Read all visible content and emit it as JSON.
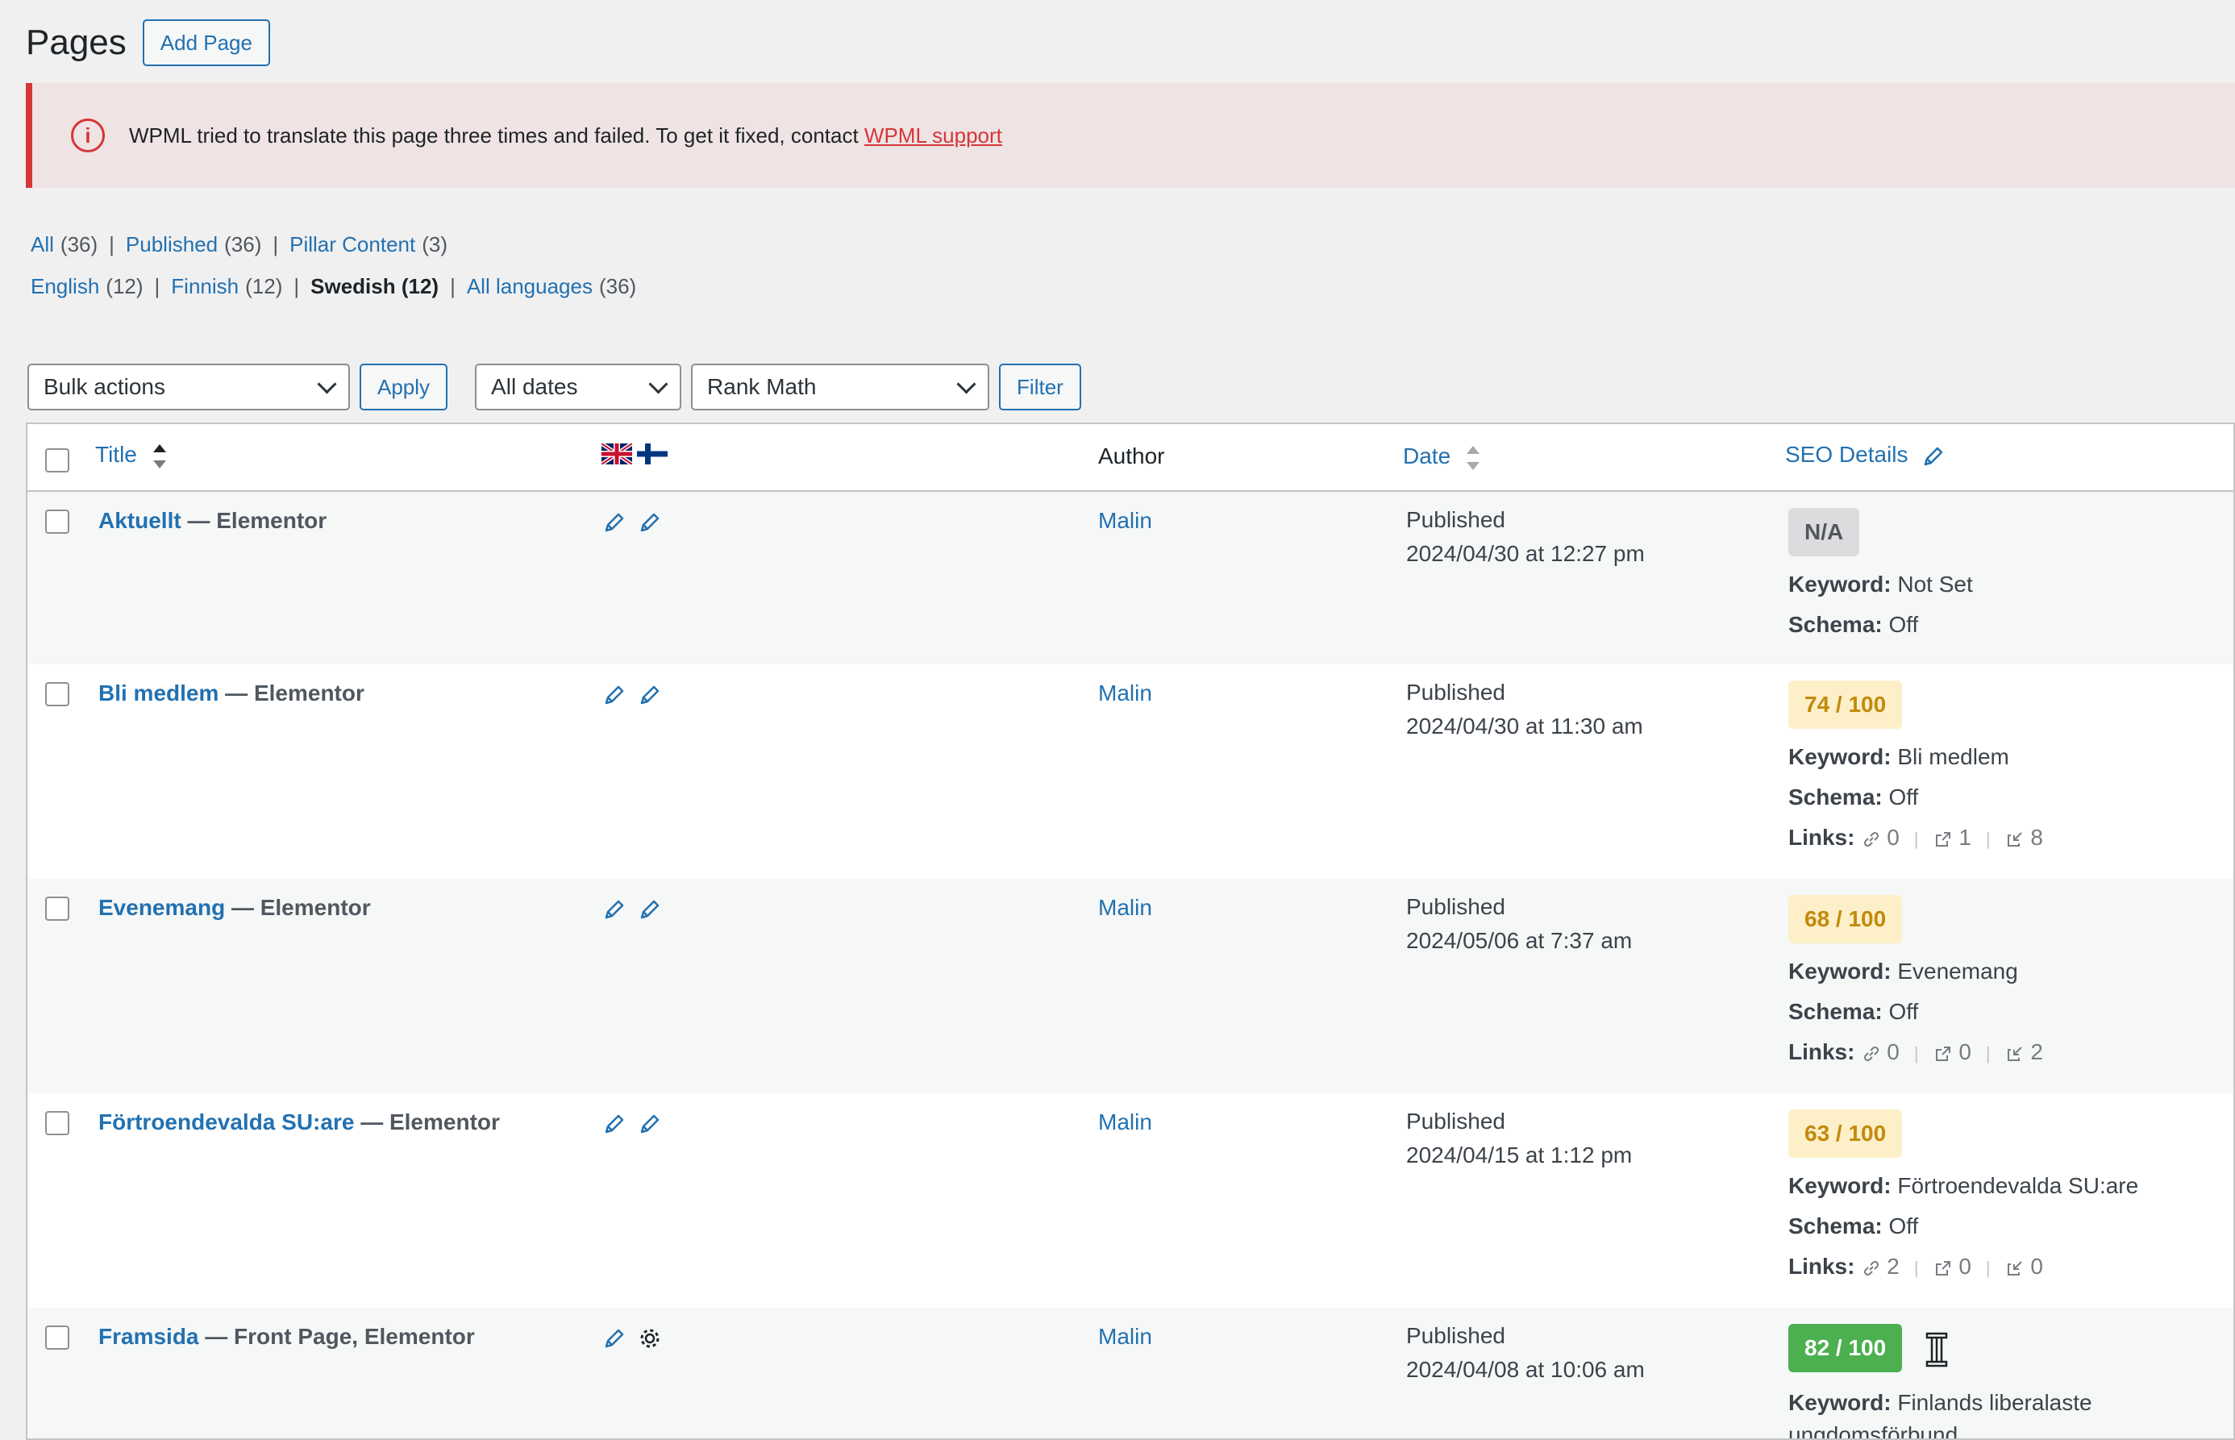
{
  "header": {
    "title": "Pages",
    "add_label": "Add Page"
  },
  "notice": {
    "text": "WPML tried to translate this page three times and failed. To get it fixed, contact ",
    "link": "WPML support"
  },
  "filters_row1": [
    {
      "label": "All",
      "count": "(36)"
    },
    {
      "label": "Published",
      "count": "(36)"
    },
    {
      "label": "Pillar Content",
      "count": "(3)"
    }
  ],
  "filters_row2": [
    {
      "label": "English",
      "count": "(12)"
    },
    {
      "label": "Finnish",
      "count": "(12)"
    },
    {
      "label": "Swedish (12)"
    },
    {
      "label": "All languages",
      "count": "(36)"
    }
  ],
  "tablenav": {
    "bulk": "Bulk actions",
    "apply": "Apply",
    "dates": "All dates",
    "seo_filter": "Rank Math",
    "filter": "Filter"
  },
  "columns": {
    "title": "Title",
    "author": "Author",
    "date": "Date",
    "seo": "SEO Details"
  },
  "labels": {
    "keyword": "Keyword:",
    "schema": "Schema:",
    "links": "Links:"
  },
  "rows": [
    {
      "title": "Aktuellt",
      "suffix": " — Elementor",
      "author": "Malin",
      "status": "Published",
      "date": "2024/04/30 at 12:27 pm",
      "score": "N/A",
      "keyword": "Not Set",
      "schema": "Off"
    },
    {
      "title": "Bli medlem",
      "suffix": " — Elementor",
      "author": "Malin",
      "status": "Published",
      "date": "2024/04/30 at 11:30 am",
      "score": "74 / 100",
      "keyword": "Bli medlem",
      "schema": "Off",
      "links": [
        "0",
        "1",
        "8"
      ]
    },
    {
      "title": "Evenemang",
      "suffix": " — Elementor",
      "author": "Malin",
      "status": "Published",
      "date": "2024/05/06 at 7:37 am",
      "score": "68 / 100",
      "keyword": "Evenemang",
      "schema": "Off",
      "links": [
        "0",
        "0",
        "2"
      ]
    },
    {
      "title": "Förtroendevalda SU:are",
      "suffix": " — Elementor",
      "author": "Malin",
      "status": "Published",
      "date": "2024/04/15 at 1:12 pm",
      "score": "63 / 100",
      "keyword": "Förtroendevalda SU:are",
      "schema": "Off",
      "links": [
        "2",
        "0",
        "0"
      ]
    },
    {
      "title": "Framsida",
      "suffix": " — Front Page, Elementor",
      "author": "Malin",
      "status": "Published",
      "date": "2024/04/08 at 10:06 am",
      "score": "82 / 100",
      "keyword": "Finlands liberalaste ungdomsförbund"
    }
  ],
  "colors": {
    "accent": "#2271b1",
    "error": "#d63638",
    "score_mid": "#fdefc8",
    "score_good": "#4caf50"
  }
}
